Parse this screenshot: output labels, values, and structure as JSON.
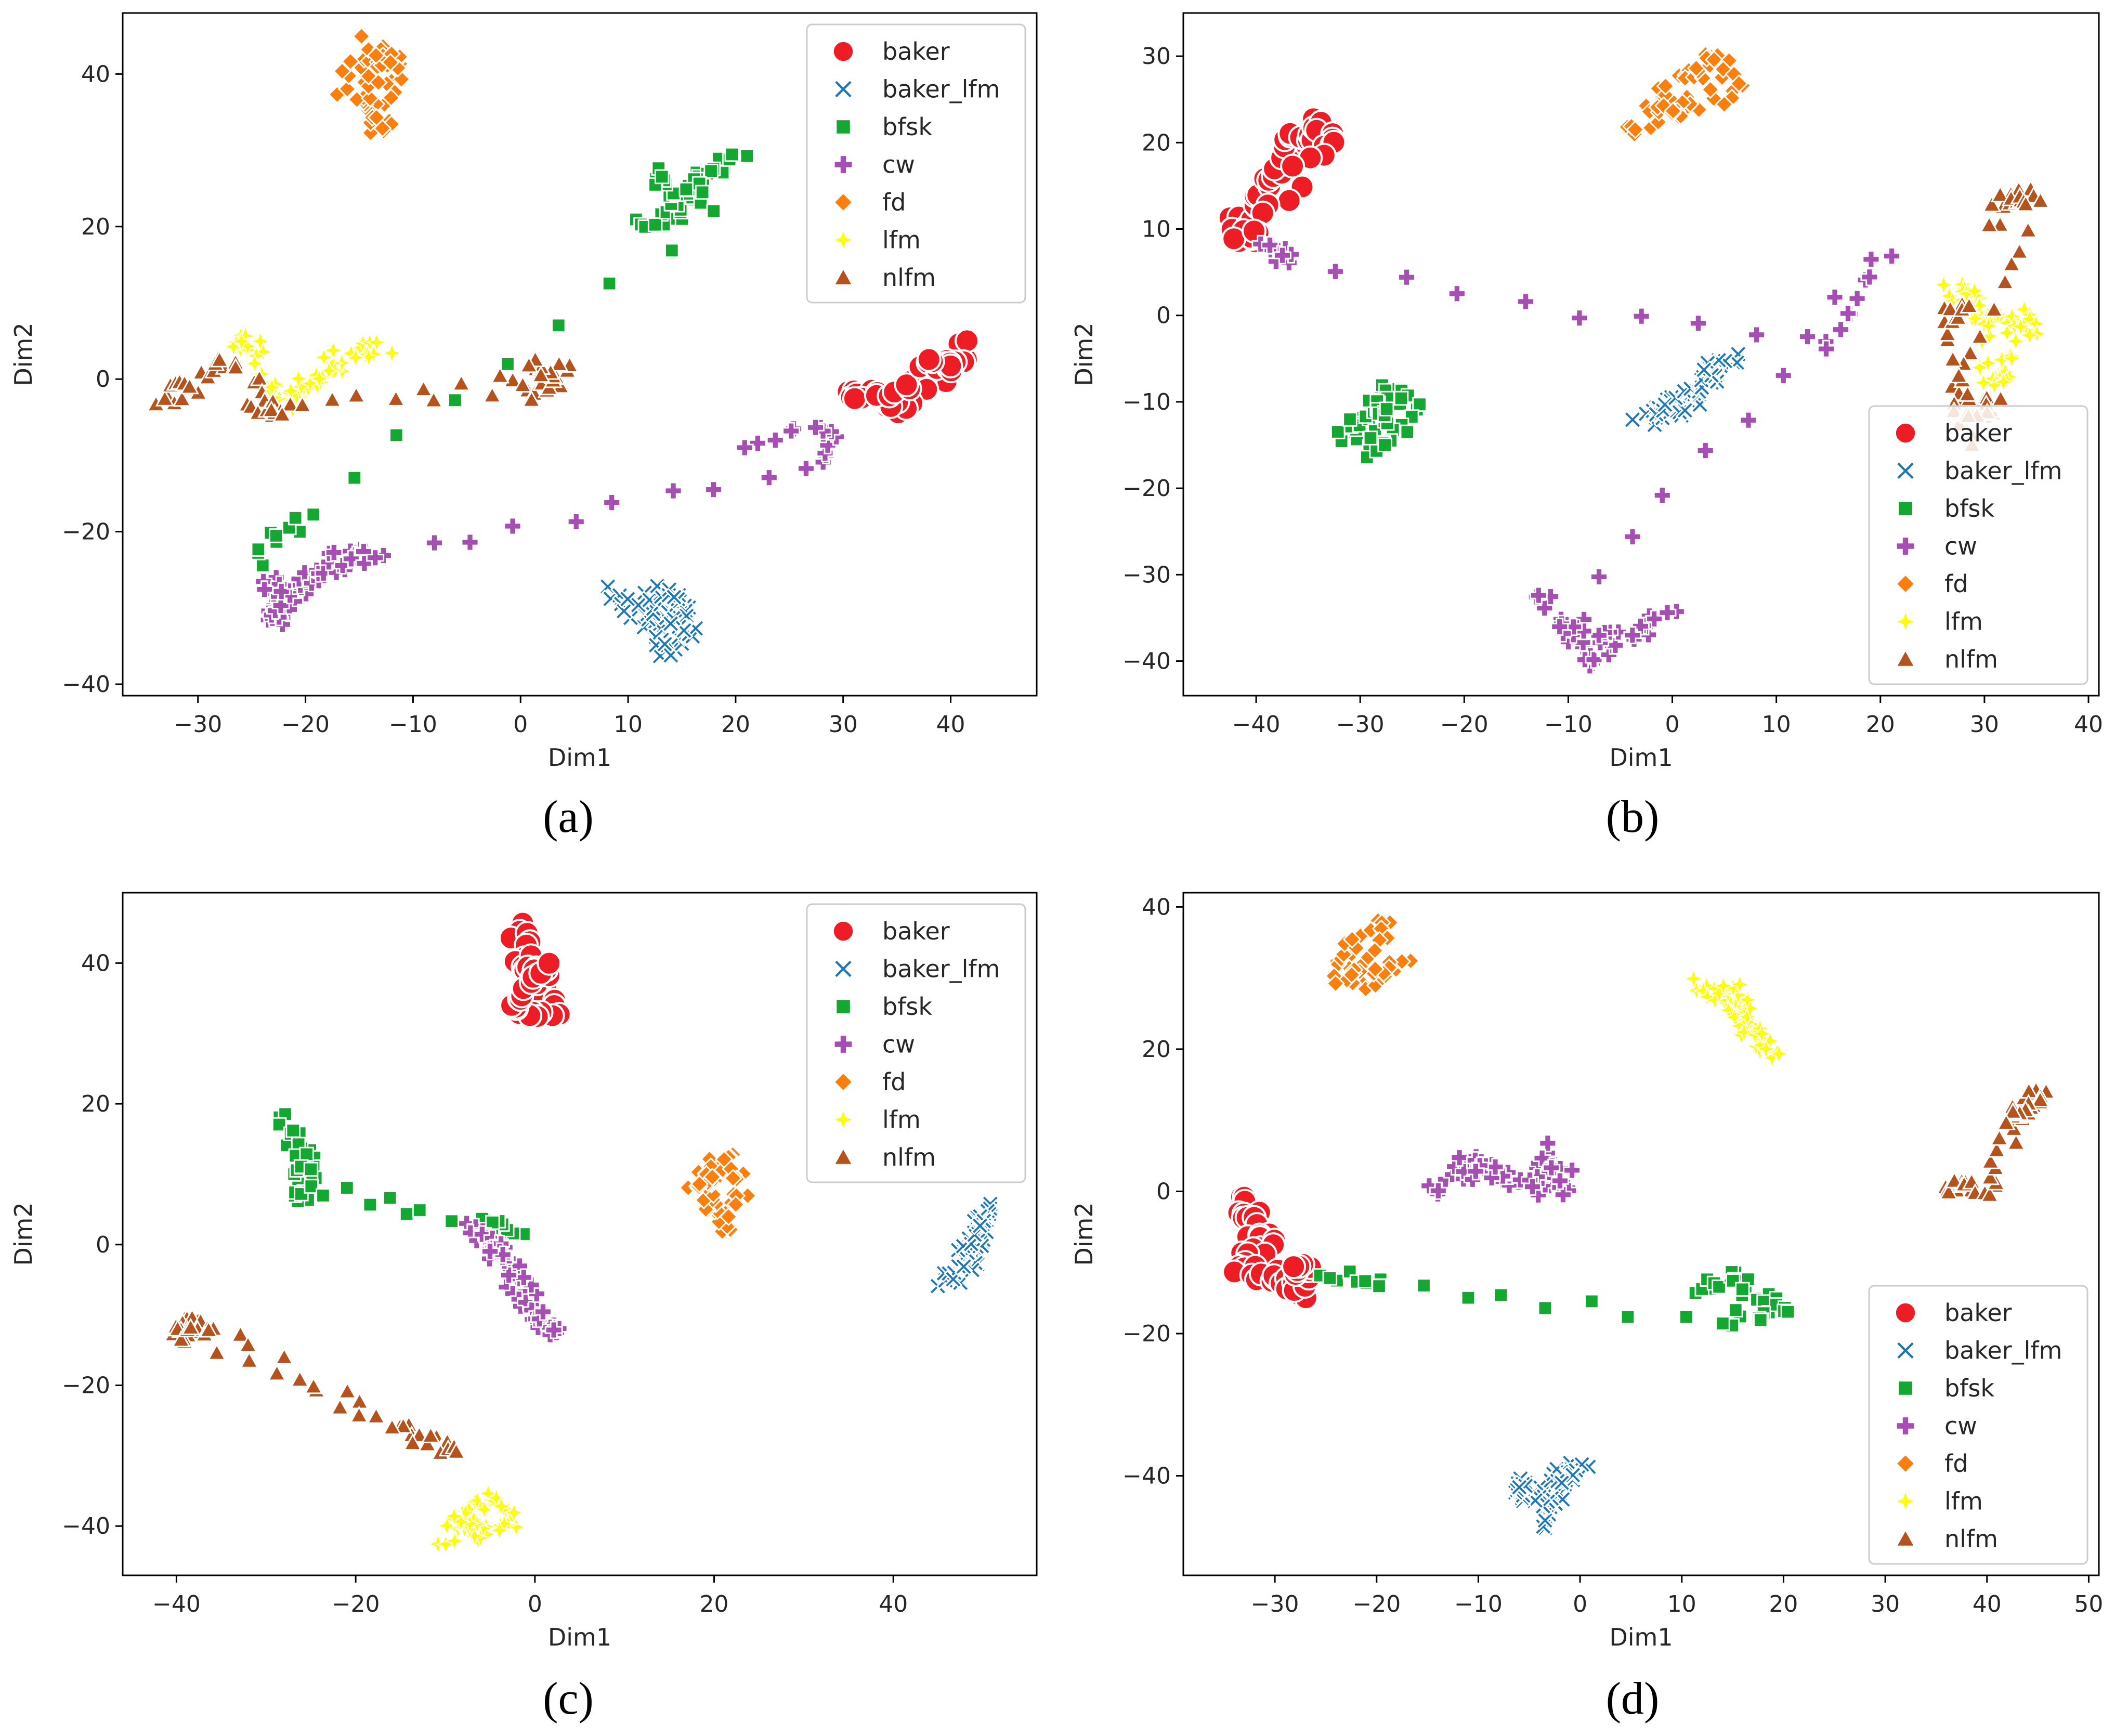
{
  "colors": {
    "baker": "#ee1c25",
    "baker_lfm": "#1f77b4",
    "bfsk": "#14a833",
    "cw": "#a64fb2",
    "fd": "#fa7f0e",
    "lfm": "#fcfc10",
    "nlfm": "#b5531e"
  },
  "chart_data": [
    {
      "type": "scatter",
      "caption": "(a)",
      "xlabel": "Dim1",
      "ylabel": "Dim2",
      "xlim": [
        -37,
        48
      ],
      "ylim": [
        -41.5,
        48
      ],
      "xticks": [
        -30,
        -20,
        -10,
        0,
        10,
        20,
        30,
        40
      ],
      "yticks": [
        -40,
        -20,
        0,
        20,
        40
      ],
      "legend": {
        "position": "top-right",
        "entries": [
          {
            "label": "baker",
            "marker": "circle"
          },
          {
            "label": "baker_lfm",
            "marker": "x"
          },
          {
            "label": "bfsk",
            "marker": "square"
          },
          {
            "label": "cw",
            "marker": "plus"
          },
          {
            "label": "fd",
            "marker": "diamond"
          },
          {
            "label": "lfm",
            "marker": "star"
          },
          {
            "label": "nlfm",
            "marker": "triangle"
          }
        ]
      },
      "clusters": [
        {
          "label": "baker",
          "points": [
            [
              30,
              -1
            ],
            [
              34,
              -3
            ],
            [
              38,
              0
            ],
            [
              42,
              4
            ],
            [
              36,
              -4
            ],
            [
              32,
              -2
            ],
            [
              40,
              2
            ]
          ]
        },
        {
          "label": "baker_lfm",
          "points": [
            [
              9,
              -28
            ],
            [
              12,
              -32
            ],
            [
              15,
              -30
            ],
            [
              13,
              -36
            ],
            [
              16,
              -33
            ],
            [
              10,
              -30
            ],
            [
              14,
              -28
            ]
          ]
        },
        {
          "label": "bfsk",
          "points": [
            [
              11,
              20
            ],
            [
              14,
              22
            ],
            [
              17,
              26
            ],
            [
              20,
              29
            ],
            [
              15,
              24
            ],
            [
              13,
              27
            ],
            [
              18,
              23
            ],
            [
              -25,
              -24
            ]
          ]
        },
        {
          "label": "cw",
          "points": [
            [
              -24,
              -26
            ],
            [
              -22,
              -30
            ],
            [
              -23,
              -32
            ],
            [
              -21,
              -28
            ],
            [
              -18,
              -25
            ],
            [
              -16,
              -23
            ],
            [
              -13,
              -24
            ],
            [
              27,
              -11
            ],
            [
              29,
              -6
            ]
          ]
        },
        {
          "label": "fd",
          "points": [
            [
              -17,
              38
            ],
            [
              -14,
              44
            ],
            [
              -11,
              40
            ],
            [
              -13,
              33
            ],
            [
              -15,
              36
            ],
            [
              -12,
              42
            ]
          ]
        },
        {
          "label": "lfm",
          "points": [
            [
              -27,
              5
            ],
            [
              -25,
              4
            ],
            [
              -21,
              -3
            ],
            [
              -19,
              -1
            ],
            [
              -16,
              4
            ],
            [
              -13,
              4
            ],
            [
              -23,
              -2
            ]
          ]
        },
        {
          "label": "nlfm",
          "points": [
            [
              -33,
              -3
            ],
            [
              -31,
              -1
            ],
            [
              -27,
              3
            ],
            [
              -24,
              -4
            ],
            [
              -22,
              -4
            ],
            [
              0,
              -1
            ],
            [
              2,
              -2
            ],
            [
              4,
              2
            ]
          ]
        }
      ]
    },
    {
      "type": "scatter",
      "caption": "(b)",
      "xlabel": "Dim1",
      "ylabel": "Dim2",
      "xlim": [
        -47,
        41
      ],
      "ylim": [
        -44,
        35
      ],
      "xticks": [
        -40,
        -30,
        -20,
        -10,
        0,
        10,
        20,
        30,
        40
      ],
      "yticks": [
        -40,
        -30,
        -20,
        -10,
        0,
        10,
        20,
        30
      ],
      "legend": {
        "position": "bottom-right",
        "entries": [
          {
            "label": "baker",
            "marker": "circle"
          },
          {
            "label": "baker_lfm",
            "marker": "x"
          },
          {
            "label": "bfsk",
            "marker": "square"
          },
          {
            "label": "cw",
            "marker": "plus"
          },
          {
            "label": "fd",
            "marker": "diamond"
          },
          {
            "label": "lfm",
            "marker": "star"
          },
          {
            "label": "nlfm",
            "marker": "triangle"
          }
        ]
      },
      "clusters": [
        {
          "label": "baker",
          "points": [
            [
              -42,
              10
            ],
            [
              -40,
              13
            ],
            [
              -38,
              17
            ],
            [
              -36,
              20
            ],
            [
              -34,
              22
            ],
            [
              -33,
              20
            ],
            [
              -41,
              9
            ]
          ]
        },
        {
          "label": "baker_lfm",
          "points": [
            [
              -3,
              -13
            ],
            [
              0,
              -10
            ],
            [
              3,
              -8
            ],
            [
              6,
              -5
            ],
            [
              -1,
              -12
            ],
            [
              2,
              -9
            ],
            [
              4,
              -6
            ]
          ]
        },
        {
          "label": "bfsk",
          "points": [
            [
              -32,
              -14
            ],
            [
              -30,
              -12
            ],
            [
              -27,
              -8
            ],
            [
              -25,
              -11
            ],
            [
              -29,
              -16
            ],
            [
              -28,
              -10
            ]
          ]
        },
        {
          "label": "cw",
          "points": [
            [
              -39,
              8
            ],
            [
              -37,
              6
            ],
            [
              14,
              -4
            ],
            [
              20,
              7
            ],
            [
              -10,
              -35
            ],
            [
              -8,
              -40
            ],
            [
              -6,
              -38
            ],
            [
              0,
              -35
            ],
            [
              -9,
              -38
            ]
          ]
        },
        {
          "label": "fd",
          "points": [
            [
              -4,
              21
            ],
            [
              -1,
              25
            ],
            [
              2,
              28
            ],
            [
              4,
              30
            ],
            [
              6,
              26
            ],
            [
              0,
              24
            ]
          ]
        },
        {
          "label": "lfm",
          "points": [
            [
              27,
              3
            ],
            [
              30,
              0
            ],
            [
              33,
              -1
            ],
            [
              35,
              0
            ],
            [
              32,
              -6
            ],
            [
              31,
              -8
            ],
            [
              29,
              2
            ]
          ]
        },
        {
          "label": "nlfm",
          "points": [
            [
              31,
              11
            ],
            [
              33,
              14
            ],
            [
              35,
              13
            ],
            [
              27,
              -9
            ],
            [
              29,
              -11
            ],
            [
              31,
              -10
            ],
            [
              28,
              -14
            ],
            [
              27,
              0
            ]
          ]
        }
      ]
    },
    {
      "type": "scatter",
      "caption": "(c)",
      "xlabel": "Dim1",
      "ylabel": "Dim2",
      "xlim": [
        -46,
        56
      ],
      "ylim": [
        -47,
        50
      ],
      "xticks": [
        -40,
        -20,
        0,
        20,
        40
      ],
      "yticks": [
        -40,
        -20,
        0,
        20,
        40
      ],
      "legend": {
        "position": "top-right",
        "entries": [
          {
            "label": "baker",
            "marker": "circle"
          },
          {
            "label": "baker_lfm",
            "marker": "x"
          },
          {
            "label": "bfsk",
            "marker": "square"
          },
          {
            "label": "cw",
            "marker": "plus"
          },
          {
            "label": "fd",
            "marker": "diamond"
          },
          {
            "label": "lfm",
            "marker": "star"
          },
          {
            "label": "nlfm",
            "marker": "triangle"
          }
        ]
      },
      "clusters": [
        {
          "label": "baker",
          "points": [
            [
              -2,
              45
            ],
            [
              -1,
              40
            ],
            [
              0,
              36
            ],
            [
              2,
              32
            ],
            [
              -2,
              34
            ],
            [
              1,
              38
            ]
          ]
        },
        {
          "label": "baker_lfm",
          "points": [
            [
              46,
              -5
            ],
            [
              48,
              -2
            ],
            [
              50,
              3
            ],
            [
              49,
              -1
            ],
            [
              47,
              -4
            ],
            [
              50,
              5
            ]
          ]
        },
        {
          "label": "bfsk",
          "points": [
            [
              -28,
              18
            ],
            [
              -26,
              14
            ],
            [
              -25,
              9
            ],
            [
              -26,
              6
            ],
            [
              -27,
              16
            ],
            [
              -24,
              8
            ],
            [
              -2,
              1
            ]
          ]
        },
        {
          "label": "cw",
          "points": [
            [
              -7,
              3
            ],
            [
              -5,
              0
            ],
            [
              -3,
              -3
            ],
            [
              -1,
              -8
            ],
            [
              1,
              -11
            ],
            [
              2,
              -13
            ],
            [
              -4,
              -1
            ]
          ]
        },
        {
          "label": "fd",
          "points": [
            [
              18,
              8
            ],
            [
              21,
              12
            ],
            [
              23,
              10
            ],
            [
              22,
              2
            ],
            [
              20,
              5
            ],
            [
              19,
              9
            ]
          ]
        },
        {
          "label": "lfm",
          "points": [
            [
              -10,
              -42
            ],
            [
              -7,
              -38
            ],
            [
              -4,
              -36
            ],
            [
              -3,
              -40
            ],
            [
              -6,
              -41
            ],
            [
              -8,
              -39
            ]
          ]
        },
        {
          "label": "nlfm",
          "points": [
            [
              -40,
              -12
            ],
            [
              -38,
              -11
            ],
            [
              -36,
              -12
            ],
            [
              -15,
              -26
            ],
            [
              -12,
              -28
            ],
            [
              -9,
              -30
            ],
            [
              -39,
              -13
            ]
          ]
        }
      ]
    },
    {
      "type": "scatter",
      "caption": "(d)",
      "xlabel": "Dim1",
      "ylabel": "Dim2",
      "xlim": [
        -39,
        51
      ],
      "ylim": [
        -54,
        42
      ],
      "xticks": [
        -30,
        -20,
        -10,
        0,
        10,
        20,
        30,
        40,
        50
      ],
      "yticks": [
        -40,
        -20,
        0,
        20,
        40
      ],
      "legend": {
        "position": "bottom-right",
        "entries": [
          {
            "label": "baker",
            "marker": "circle"
          },
          {
            "label": "baker_lfm",
            "marker": "x"
          },
          {
            "label": "bfsk",
            "marker": "square"
          },
          {
            "label": "cw",
            "marker": "plus"
          },
          {
            "label": "fd",
            "marker": "diamond"
          },
          {
            "label": "lfm",
            "marker": "star"
          },
          {
            "label": "nlfm",
            "marker": "triangle"
          }
        ]
      },
      "clusters": [
        {
          "label": "baker",
          "points": [
            [
              -34,
              -1
            ],
            [
              -32,
              -4
            ],
            [
              -31,
              -8
            ],
            [
              -34,
              -11
            ],
            [
              -30,
              -12
            ],
            [
              -28,
              -14
            ],
            [
              -27,
              -12
            ]
          ]
        },
        {
          "label": "baker_lfm",
          "points": [
            [
              -5,
              -42
            ],
            [
              -3,
              -47
            ],
            [
              -2,
              -40
            ],
            [
              0,
              -38
            ],
            [
              -4,
              -44
            ],
            [
              -6,
              -41
            ]
          ]
        },
        {
          "label": "bfsk",
          "points": [
            [
              12,
              -14
            ],
            [
              15,
              -12
            ],
            [
              18,
              -15
            ],
            [
              20,
              -17
            ],
            [
              14,
              -18
            ],
            [
              -25,
              -12
            ]
          ]
        },
        {
          "label": "cw",
          "points": [
            [
              -14,
              0
            ],
            [
              -11,
              4
            ],
            [
              -7,
              2
            ],
            [
              -4,
              0
            ],
            [
              -3,
              6
            ],
            [
              -1,
              0
            ],
            [
              -9,
              3
            ]
          ]
        },
        {
          "label": "fd",
          "points": [
            [
              -24,
              32
            ],
            [
              -22,
              35
            ],
            [
              -19,
              38
            ],
            [
              -21,
              29
            ],
            [
              -17,
              33
            ],
            [
              -23,
              30
            ]
          ]
        },
        {
          "label": "lfm",
          "points": [
            [
              12,
              29
            ],
            [
              14,
              27
            ],
            [
              16,
              25
            ],
            [
              17,
              21
            ],
            [
              19,
              19
            ],
            [
              15,
              28
            ]
          ]
        },
        {
          "label": "nlfm",
          "points": [
            [
              36,
              0
            ],
            [
              38,
              1
            ],
            [
              40,
              0
            ],
            [
              43,
              10
            ],
            [
              45,
              14
            ],
            [
              44,
              12
            ]
          ]
        }
      ]
    }
  ]
}
